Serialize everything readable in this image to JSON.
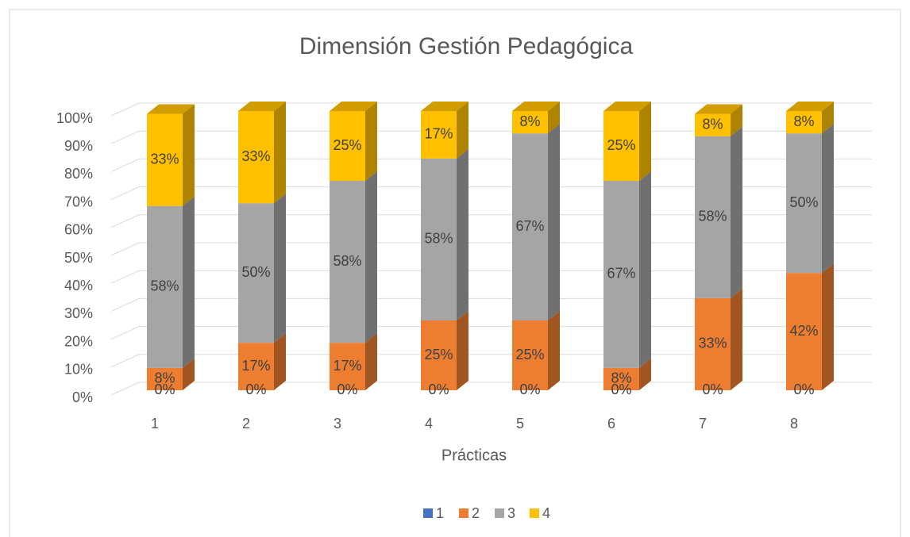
{
  "chart_data": {
    "type": "bar3d_stacked",
    "title": "Dimensión Gestión Pedagógica",
    "x_label": "Prácticas",
    "categories": [
      "1",
      "2",
      "3",
      "4",
      "5",
      "6",
      "7",
      "8"
    ],
    "series": [
      {
        "name": "1",
        "color": "#4472c4",
        "values": [
          0,
          0,
          0,
          0,
          0,
          0,
          0,
          0
        ],
        "value_labels": [
          "0%",
          "0%",
          "0%",
          "0%",
          "0%",
          "0%",
          "0%",
          "0%"
        ]
      },
      {
        "name": "2",
        "color": "#ed7d31",
        "values": [
          8,
          17,
          17,
          25,
          25,
          8,
          33,
          42
        ],
        "value_labels": [
          "8%",
          "17%",
          "17%",
          "25%",
          "25%",
          "8%",
          "33%",
          "42%"
        ]
      },
      {
        "name": "3",
        "color": "#a5a5a5",
        "values": [
          58,
          50,
          58,
          58,
          67,
          67,
          58,
          50
        ],
        "value_labels": [
          "58%",
          "50%",
          "58%",
          "58%",
          "67%",
          "67%",
          "58%",
          "50%"
        ]
      },
      {
        "name": "4",
        "color": "#ffc000",
        "values": [
          33,
          33,
          25,
          17,
          8,
          25,
          8,
          8
        ],
        "value_labels": [
          "33%",
          "33%",
          "25%",
          "17%",
          "8%",
          "25%",
          "8%",
          "8%"
        ]
      }
    ],
    "ylim": [
      0,
      100
    ],
    "yticks": [
      {
        "value": 0,
        "label": "0%"
      },
      {
        "value": 10,
        "label": "10%"
      },
      {
        "value": 20,
        "label": "20%"
      },
      {
        "value": 30,
        "label": "30%"
      },
      {
        "value": 40,
        "label": "40%"
      },
      {
        "value": 50,
        "label": "50%"
      },
      {
        "value": 60,
        "label": "60%"
      },
      {
        "value": 70,
        "label": "70%"
      },
      {
        "value": 80,
        "label": "80%"
      },
      {
        "value": 90,
        "label": "90%"
      },
      {
        "value": 100,
        "label": "100%"
      }
    ],
    "grid": true,
    "legend": "bottom"
  }
}
